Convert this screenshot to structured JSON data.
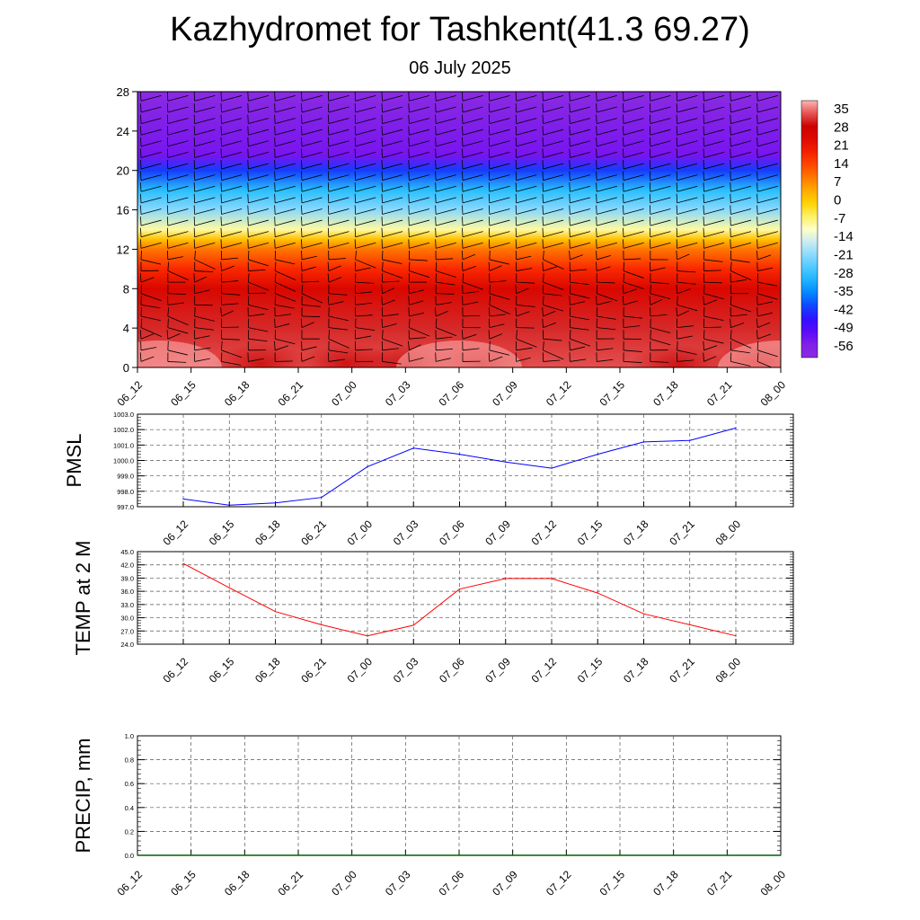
{
  "header": {
    "title": "Kazhydromet for Tashkent(41.3 69.27)",
    "subtitle": "06 July 2025"
  },
  "colors": {
    "pmsl_line": "#0000ff",
    "temp_line": "#ff0000",
    "precip_line": "#006400",
    "wind_barb": "#000000",
    "grid": "#555555"
  },
  "chart_data": [
    {
      "id": "cross_section",
      "type": "heatmap",
      "title": "",
      "xlabel": "",
      "ylabel": "",
      "x": [
        "06_12",
        "06_15",
        "06_18",
        "06_21",
        "07_00",
        "07_03",
        "07_06",
        "07_09",
        "07_12",
        "07_15",
        "07_18",
        "07_21",
        "08_00"
      ],
      "y_ticks": [
        0,
        4,
        8,
        12,
        16,
        20,
        24,
        28
      ],
      "ylim": [
        0,
        28
      ],
      "wind_barbs": true,
      "colorbar": {
        "placement": "right",
        "labels": [
          "35",
          "28",
          "21",
          "14",
          "7",
          "0",
          "-7",
          "-14",
          "-21",
          "-28",
          "-35",
          "-42",
          "-49",
          "-56"
        ]
      },
      "field_profile": [
        {
          "level": 0,
          "value": 30
        },
        {
          "level": 4,
          "value": 28
        },
        {
          "level": 8,
          "value": 22
        },
        {
          "level": 10,
          "value": 14
        },
        {
          "level": 12,
          "value": 6
        },
        {
          "level": 13,
          "value": -2
        },
        {
          "level": 14,
          "value": -12
        },
        {
          "level": 16,
          "value": -24
        },
        {
          "level": 18,
          "value": -32
        },
        {
          "level": 20,
          "value": -44
        },
        {
          "level": 21.5,
          "value": -56
        },
        {
          "level": 28,
          "value": -60
        }
      ]
    },
    {
      "id": "pmsl",
      "type": "line",
      "ylabel": "PMSL",
      "x": [
        "06_12",
        "06_15",
        "06_18",
        "06_21",
        "07_00",
        "07_03",
        "07_06",
        "07_09",
        "07_12",
        "07_15",
        "07_18",
        "07_21",
        "08_00"
      ],
      "ylim": [
        997.0,
        1003.0
      ],
      "y_ticks": [
        "997.0",
        "998.0",
        "999.0",
        "1000.0",
        "1001.0",
        "1002.0",
        "1003.0"
      ],
      "grid": true,
      "series": [
        {
          "values": [
            997.5,
            997.1,
            997.25,
            997.6,
            999.6,
            1000.8,
            1000.4,
            999.9,
            999.5,
            1000.4,
            1001.2,
            1001.3,
            1002.1
          ]
        }
      ]
    },
    {
      "id": "temp",
      "type": "line",
      "ylabel": "TEMP at 2 M",
      "x": [
        "06_12",
        "06_15",
        "06_18",
        "06_21",
        "07_00",
        "07_03",
        "07_06",
        "07_09",
        "07_12",
        "07_15",
        "07_18",
        "07_21",
        "08_00"
      ],
      "ylim": [
        24.0,
        45.0
      ],
      "y_ticks": [
        "24.0",
        "27.0",
        "30.0",
        "33.0",
        "36.0",
        "39.0",
        "42.0",
        "45.0"
      ],
      "grid": true,
      "series": [
        {
          "values": [
            42.3,
            36.8,
            31.4,
            28.4,
            25.9,
            28.3,
            36.5,
            38.9,
            38.9,
            35.6,
            30.9,
            28.4,
            25.9
          ]
        }
      ]
    },
    {
      "id": "precip",
      "type": "line",
      "ylabel": "PRECIP, mm",
      "x": [
        "06_12",
        "06_15",
        "06_18",
        "06_21",
        "07_00",
        "07_03",
        "07_06",
        "07_09",
        "07_12",
        "07_15",
        "07_18",
        "07_21",
        "08_00"
      ],
      "ylim": [
        0.0,
        1.0
      ],
      "y_ticks": [
        "0.0",
        "0.2",
        "0.4",
        "0.6",
        "0.8",
        "1.0"
      ],
      "grid": true,
      "series": [
        {
          "values": [
            0,
            0,
            0,
            0,
            0,
            0,
            0,
            0,
            0,
            0,
            0,
            0,
            0
          ]
        }
      ]
    }
  ]
}
